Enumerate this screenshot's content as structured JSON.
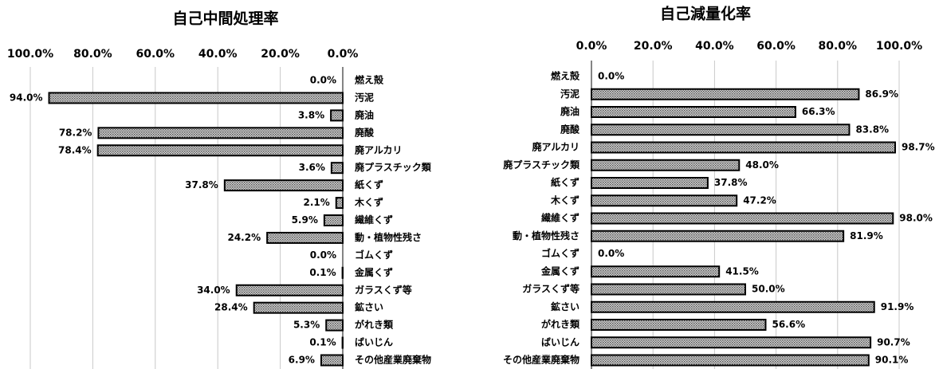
{
  "chart_data": [
    {
      "type": "bar",
      "title": "自己中間処理率",
      "categories": [
        "燃え殻",
        "汚泥",
        "廃油",
        "廃酸",
        "廃アルカリ",
        "廃プラスチック類",
        "紙くず",
        "木くず",
        "繊維くず",
        "動・植物性残さ",
        "ゴムくず",
        "金属くず",
        "ガラスくず等",
        "鉱さい",
        "がれき類",
        "ばいじん",
        "その他産業廃棄物"
      ],
      "values": [
        0.0,
        94.0,
        3.8,
        78.2,
        78.4,
        3.6,
        37.8,
        2.1,
        5.9,
        24.2,
        0.0,
        0.1,
        34.0,
        28.4,
        5.3,
        0.1,
        6.9
      ],
      "value_labels": [
        "0.0%",
        "94.0%",
        "3.8%",
        "78.2%",
        "78.4%",
        "3.6%",
        "37.8%",
        "2.1%",
        "5.9%",
        "24.2%",
        "0.0%",
        "0.1%",
        "34.0%",
        "28.4%",
        "5.3%",
        "0.1%",
        "6.9%"
      ],
      "xlim": [
        100,
        0
      ],
      "xticks": [
        {
          "value": 100,
          "label": "100.0%"
        },
        {
          "value": 80,
          "label": "80.0%"
        },
        {
          "value": 60,
          "label": "60.0%"
        },
        {
          "value": 40,
          "label": "40.0%"
        },
        {
          "value": 20,
          "label": "20.0%"
        },
        {
          "value": 0,
          "label": "0.0%"
        }
      ],
      "grid": true,
      "color": "#9a9a9a"
    },
    {
      "type": "bar",
      "title": "自己減量化率",
      "categories": [
        "燃え殻",
        "汚泥",
        "廃油",
        "廃酸",
        "廃アルカリ",
        "廃プラスチック類",
        "紙くず",
        "木くず",
        "繊維くず",
        "動・植物性残さ",
        "ゴムくず",
        "金属くず",
        "ガラスくず等",
        "鉱さい",
        "がれき類",
        "ばいじん",
        "その他産業廃棄物"
      ],
      "values": [
        0.0,
        86.9,
        66.3,
        83.8,
        98.7,
        48.0,
        37.8,
        47.2,
        98.0,
        81.9,
        0.0,
        41.5,
        50.0,
        91.9,
        56.6,
        90.7,
        90.1
      ],
      "value_labels": [
        "0.0%",
        "86.9%",
        "66.3%",
        "83.8%",
        "98.7%",
        "48.0%",
        "37.8%",
        "47.2%",
        "98.0%",
        "81.9%",
        "0.0%",
        "41.5%",
        "50.0%",
        "91.9%",
        "56.6%",
        "90.7%",
        "90.1%"
      ],
      "xlim": [
        0,
        100
      ],
      "xticks": [
        {
          "value": 0,
          "label": "0.0%"
        },
        {
          "value": 20,
          "label": "20.0%"
        },
        {
          "value": 40,
          "label": "40.0%"
        },
        {
          "value": 60,
          "label": "60.0%"
        },
        {
          "value": 80,
          "label": "80.0%"
        },
        {
          "value": 100,
          "label": "100.0%"
        }
      ],
      "grid": true,
      "color": "#9a9a9a"
    }
  ]
}
